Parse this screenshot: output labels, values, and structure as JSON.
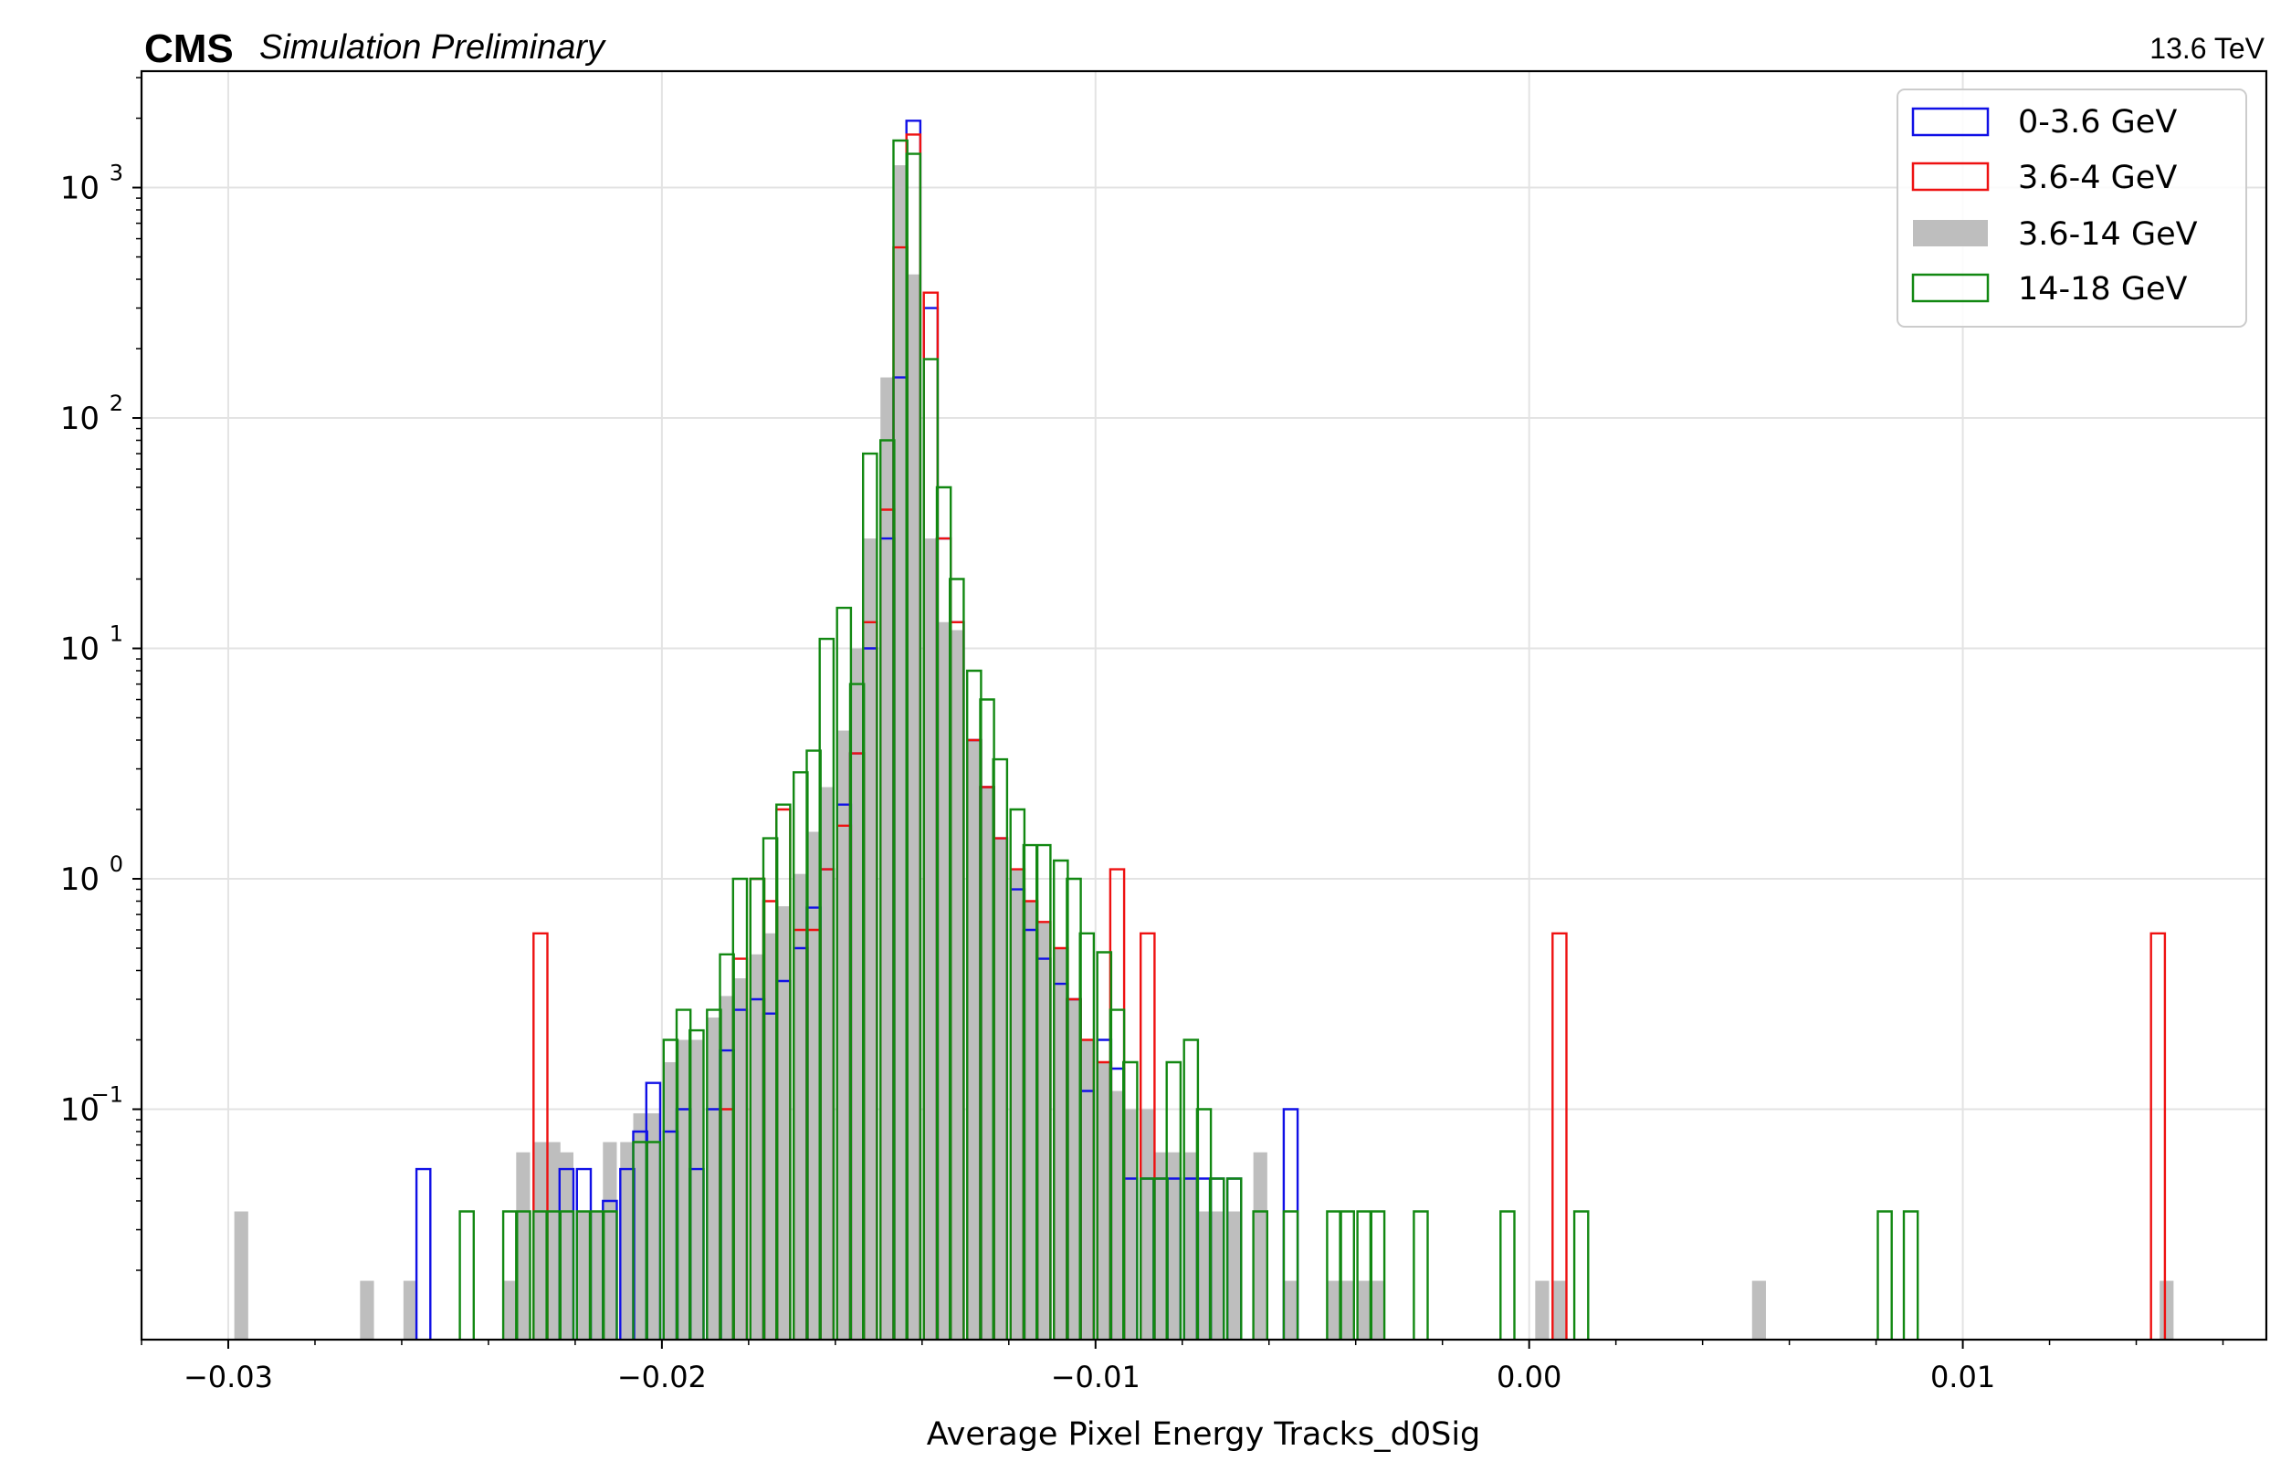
{
  "chart_data": {
    "type": "histogram",
    "header": {
      "experiment": "CMS",
      "status": "Simulation Preliminary",
      "energy": "13.6 TeV"
    },
    "xlabel": "Average Pixel Energy Tracks_d0Sig",
    "ylabel": "",
    "xlim": [
      -0.032,
      0.017
    ],
    "ylim": [
      0.01,
      3200
    ],
    "yscale": "log",
    "grid": true,
    "legend_position": "top-right",
    "x_ticks": [
      {
        "value": -0.03,
        "label": "−0.03"
      },
      {
        "value": -0.02,
        "label": "−0.02"
      },
      {
        "value": -0.01,
        "label": "−0.01"
      },
      {
        "value": 0.0,
        "label": "0.00"
      },
      {
        "value": 0.01,
        "label": "0.01"
      }
    ],
    "y_ticks": [
      {
        "value": 0.1,
        "base": "10",
        "exp": "−1"
      },
      {
        "value": 1,
        "base": "10",
        "exp": "0"
      },
      {
        "value": 10,
        "base": "10",
        "exp": "1"
      },
      {
        "value": 100,
        "base": "10",
        "exp": "2"
      },
      {
        "value": 1000,
        "base": "10",
        "exp": "3"
      }
    ],
    "series": [
      {
        "name": "3.6-14 GeV",
        "style": "filled",
        "color": "#bebebe",
        "points": [
          [
            -0.0297,
            0.036
          ],
          [
            -0.0268,
            0.018
          ],
          [
            -0.0258,
            0.018
          ],
          [
            -0.0235,
            0.018
          ],
          [
            -0.0232,
            0.065
          ],
          [
            -0.0228,
            0.072
          ],
          [
            -0.0225,
            0.072
          ],
          [
            -0.0222,
            0.065
          ],
          [
            -0.0218,
            0.036
          ],
          [
            -0.0215,
            0.036
          ],
          [
            -0.0212,
            0.072
          ],
          [
            -0.0208,
            0.072
          ],
          [
            -0.0205,
            0.096
          ],
          [
            -0.0202,
            0.096
          ],
          [
            -0.0198,
            0.16
          ],
          [
            -0.0195,
            0.2
          ],
          [
            -0.0192,
            0.2
          ],
          [
            -0.0188,
            0.25
          ],
          [
            -0.0185,
            0.31
          ],
          [
            -0.0182,
            0.37
          ],
          [
            -0.0178,
            0.47
          ],
          [
            -0.0175,
            0.58
          ],
          [
            -0.0172,
            0.76
          ],
          [
            -0.0168,
            1.05
          ],
          [
            -0.0165,
            1.6
          ],
          [
            -0.0162,
            2.5
          ],
          [
            -0.0158,
            4.4
          ],
          [
            -0.0155,
            10
          ],
          [
            -0.0152,
            30
          ],
          [
            -0.0148,
            150
          ],
          [
            -0.0145,
            1250
          ],
          [
            -0.0142,
            420
          ],
          [
            -0.0138,
            30
          ],
          [
            -0.0135,
            13
          ],
          [
            -0.0132,
            12
          ],
          [
            -0.0128,
            4.0
          ],
          [
            -0.0125,
            2.5
          ],
          [
            -0.0122,
            1.5
          ],
          [
            -0.0118,
            1.1
          ],
          [
            -0.0115,
            0.8
          ],
          [
            -0.0112,
            0.65
          ],
          [
            -0.0108,
            0.5
          ],
          [
            -0.0105,
            0.3
          ],
          [
            -0.0102,
            0.2
          ],
          [
            -0.0098,
            0.16
          ],
          [
            -0.0095,
            0.12
          ],
          [
            -0.0092,
            0.1
          ],
          [
            -0.0088,
            0.1
          ],
          [
            -0.0085,
            0.065
          ],
          [
            -0.0082,
            0.065
          ],
          [
            -0.0078,
            0.065
          ],
          [
            -0.0075,
            0.036
          ],
          [
            -0.0072,
            0.036
          ],
          [
            -0.0068,
            0.036
          ],
          [
            -0.0062,
            0.065
          ],
          [
            -0.0055,
            0.018
          ],
          [
            -0.0045,
            0.018
          ],
          [
            -0.0042,
            0.018
          ],
          [
            -0.0038,
            0.018
          ],
          [
            -0.0035,
            0.018
          ],
          [
            0.0003,
            0.018
          ],
          [
            0.0007,
            0.018
          ],
          [
            0.0053,
            0.018
          ],
          [
            0.0147,
            0.018
          ]
        ]
      },
      {
        "name": "0-3.6 GeV",
        "style": "step",
        "color": "#1010e6",
        "points": [
          [
            -0.0255,
            0.055
          ],
          [
            -0.0222,
            0.055
          ],
          [
            -0.0218,
            0.055
          ],
          [
            -0.0212,
            0.04
          ],
          [
            -0.0208,
            0.055
          ],
          [
            -0.0205,
            0.08
          ],
          [
            -0.0202,
            0.13
          ],
          [
            -0.0198,
            0.08
          ],
          [
            -0.0195,
            0.1
          ],
          [
            -0.0192,
            0.055
          ],
          [
            -0.0188,
            0.1
          ],
          [
            -0.0185,
            0.18
          ],
          [
            -0.0182,
            0.27
          ],
          [
            -0.0178,
            0.3
          ],
          [
            -0.0175,
            0.26
          ],
          [
            -0.0172,
            0.36
          ],
          [
            -0.0168,
            0.5
          ],
          [
            -0.0165,
            0.75
          ],
          [
            -0.0162,
            1.1
          ],
          [
            -0.0158,
            2.1
          ],
          [
            -0.0155,
            3.5
          ],
          [
            -0.0152,
            10
          ],
          [
            -0.0148,
            30
          ],
          [
            -0.0145,
            150
          ],
          [
            -0.0142,
            1950
          ],
          [
            -0.0138,
            300
          ],
          [
            -0.0135,
            30
          ],
          [
            -0.0132,
            13
          ],
          [
            -0.0128,
            4.0
          ],
          [
            -0.0125,
            2.5
          ],
          [
            -0.0122,
            1.5
          ],
          [
            -0.0118,
            0.9
          ],
          [
            -0.0115,
            0.6
          ],
          [
            -0.0112,
            0.45
          ],
          [
            -0.0108,
            0.35
          ],
          [
            -0.0105,
            0.3
          ],
          [
            -0.0102,
            0.12
          ],
          [
            -0.0098,
            0.2
          ],
          [
            -0.0095,
            0.15
          ],
          [
            -0.0092,
            0.05
          ],
          [
            -0.0088,
            0.05
          ],
          [
            -0.0085,
            0.05
          ],
          [
            -0.0082,
            0.05
          ],
          [
            -0.0078,
            0.05
          ],
          [
            -0.0075,
            0.05
          ],
          [
            -0.0072,
            0.05
          ],
          [
            -0.0068,
            0.05
          ],
          [
            -0.0055,
            0.1
          ]
        ]
      },
      {
        "name": "3.6-4 GeV",
        "style": "step",
        "color": "#ee1111",
        "points": [
          [
            -0.0228,
            0.58
          ],
          [
            -0.0185,
            0.1
          ],
          [
            -0.0182,
            0.45
          ],
          [
            -0.0178,
            1.0
          ],
          [
            -0.0175,
            0.8
          ],
          [
            -0.0172,
            2.0
          ],
          [
            -0.0168,
            0.6
          ],
          [
            -0.0165,
            0.6
          ],
          [
            -0.0162,
            1.1
          ],
          [
            -0.0158,
            1.7
          ],
          [
            -0.0155,
            3.5
          ],
          [
            -0.0152,
            13
          ],
          [
            -0.0148,
            40
          ],
          [
            -0.0145,
            550
          ],
          [
            -0.0142,
            1700
          ],
          [
            -0.0138,
            350
          ],
          [
            -0.0135,
            30
          ],
          [
            -0.0132,
            13
          ],
          [
            -0.0128,
            4.0
          ],
          [
            -0.0125,
            2.5
          ],
          [
            -0.0122,
            1.5
          ],
          [
            -0.0118,
            1.1
          ],
          [
            -0.0115,
            0.8
          ],
          [
            -0.0112,
            0.65
          ],
          [
            -0.0108,
            0.5
          ],
          [
            -0.0105,
            0.3
          ],
          [
            -0.0102,
            0.2
          ],
          [
            -0.0098,
            0.16
          ],
          [
            -0.0095,
            1.1
          ],
          [
            -0.0088,
            0.58
          ],
          [
            0.0007,
            0.58
          ],
          [
            0.0145,
            0.58
          ]
        ]
      },
      {
        "name": "14-18 GeV",
        "style": "step",
        "color": "#128812",
        "points": [
          [
            -0.0245,
            0.036
          ],
          [
            -0.0235,
            0.036
          ],
          [
            -0.0232,
            0.036
          ],
          [
            -0.0228,
            0.036
          ],
          [
            -0.0225,
            0.036
          ],
          [
            -0.0222,
            0.036
          ],
          [
            -0.0218,
            0.036
          ],
          [
            -0.0215,
            0.036
          ],
          [
            -0.0212,
            0.036
          ],
          [
            -0.0205,
            0.072
          ],
          [
            -0.0202,
            0.072
          ],
          [
            -0.0198,
            0.2
          ],
          [
            -0.0195,
            0.27
          ],
          [
            -0.0192,
            0.22
          ],
          [
            -0.0188,
            0.27
          ],
          [
            -0.0185,
            0.47
          ],
          [
            -0.0182,
            1.0
          ],
          [
            -0.0178,
            1.0
          ],
          [
            -0.0175,
            1.5
          ],
          [
            -0.0172,
            2.1
          ],
          [
            -0.0168,
            2.9
          ],
          [
            -0.0165,
            3.6
          ],
          [
            -0.0162,
            11
          ],
          [
            -0.0158,
            15
          ],
          [
            -0.0155,
            7.0
          ],
          [
            -0.0152,
            70
          ],
          [
            -0.0148,
            80
          ],
          [
            -0.0145,
            1600
          ],
          [
            -0.0142,
            1400
          ],
          [
            -0.0138,
            180
          ],
          [
            -0.0135,
            50
          ],
          [
            -0.0132,
            20
          ],
          [
            -0.0128,
            8.0
          ],
          [
            -0.0125,
            6.0
          ],
          [
            -0.0122,
            3.3
          ],
          [
            -0.0118,
            2.0
          ],
          [
            -0.0115,
            1.4
          ],
          [
            -0.0112,
            1.4
          ],
          [
            -0.0108,
            1.2
          ],
          [
            -0.0105,
            1.0
          ],
          [
            -0.0102,
            0.58
          ],
          [
            -0.0098,
            0.48
          ],
          [
            -0.0095,
            0.27
          ],
          [
            -0.0092,
            0.16
          ],
          [
            -0.0088,
            0.05
          ],
          [
            -0.0085,
            0.05
          ],
          [
            -0.0082,
            0.16
          ],
          [
            -0.0078,
            0.2
          ],
          [
            -0.0075,
            0.1
          ],
          [
            -0.0072,
            0.05
          ],
          [
            -0.0068,
            0.05
          ],
          [
            -0.0062,
            0.036
          ],
          [
            -0.0055,
            0.036
          ],
          [
            -0.0045,
            0.036
          ],
          [
            -0.0042,
            0.036
          ],
          [
            -0.0038,
            0.036
          ],
          [
            -0.0035,
            0.036
          ],
          [
            -0.0025,
            0.036
          ],
          [
            -0.0005,
            0.036
          ],
          [
            0.0012,
            0.036
          ],
          [
            0.0082,
            0.036
          ],
          [
            0.0088,
            0.036
          ]
        ]
      }
    ]
  }
}
